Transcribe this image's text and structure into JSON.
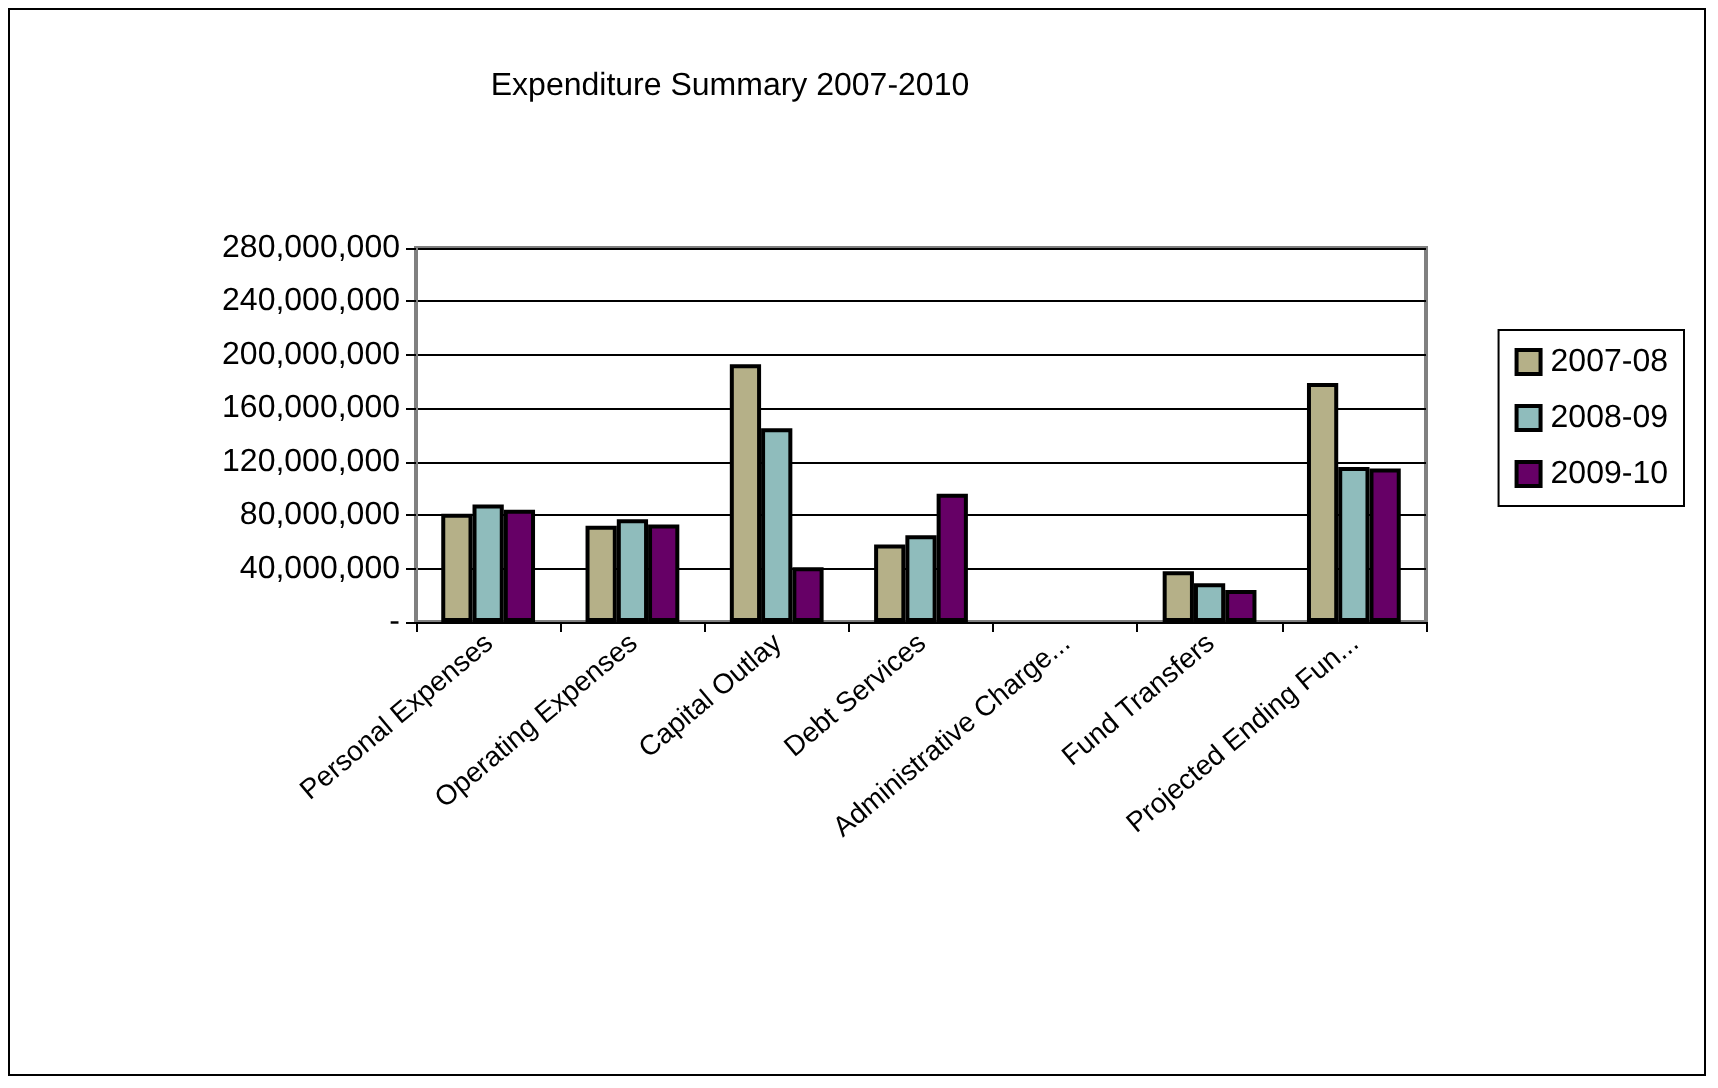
{
  "chart_data": {
    "type": "bar",
    "title": "Expenditure Summary 2007-2010",
    "categories": [
      "Personal Expenses",
      "Operating Expenses",
      "Capital Outlay",
      "Debt Services",
      "Administrative Charge...",
      "Fund Transfers",
      "Projected Ending Fun..."
    ],
    "series": [
      {
        "name": "2007-08",
        "color": "#b5b088",
        "values": [
          81000000,
          72000000,
          193000000,
          58000000,
          null,
          38000000,
          179000000
        ]
      },
      {
        "name": "2008-09",
        "color": "#8fbcbc",
        "values": [
          88000000,
          77000000,
          145000000,
          65000000,
          null,
          29000000,
          116000000
        ]
      },
      {
        "name": "2009-10",
        "color": "#660066",
        "values": [
          84000000,
          73000000,
          41000000,
          96000000,
          null,
          24000000,
          115000000
        ]
      }
    ],
    "ylim": [
      0,
      280000000
    ],
    "yticks": [
      {
        "value": 0,
        "label": "-"
      },
      {
        "value": 40000000,
        "label": "40,000,000"
      },
      {
        "value": 80000000,
        "label": "80,000,000"
      },
      {
        "value": 120000000,
        "label": "120,000,000"
      },
      {
        "value": 160000000,
        "label": "160,000,000"
      },
      {
        "value": 200000000,
        "label": "200,000,000"
      },
      {
        "value": 240000000,
        "label": "240,000,000"
      },
      {
        "value": 280000000,
        "label": "280,000,000"
      }
    ],
    "grid": "y",
    "legend": "right"
  }
}
